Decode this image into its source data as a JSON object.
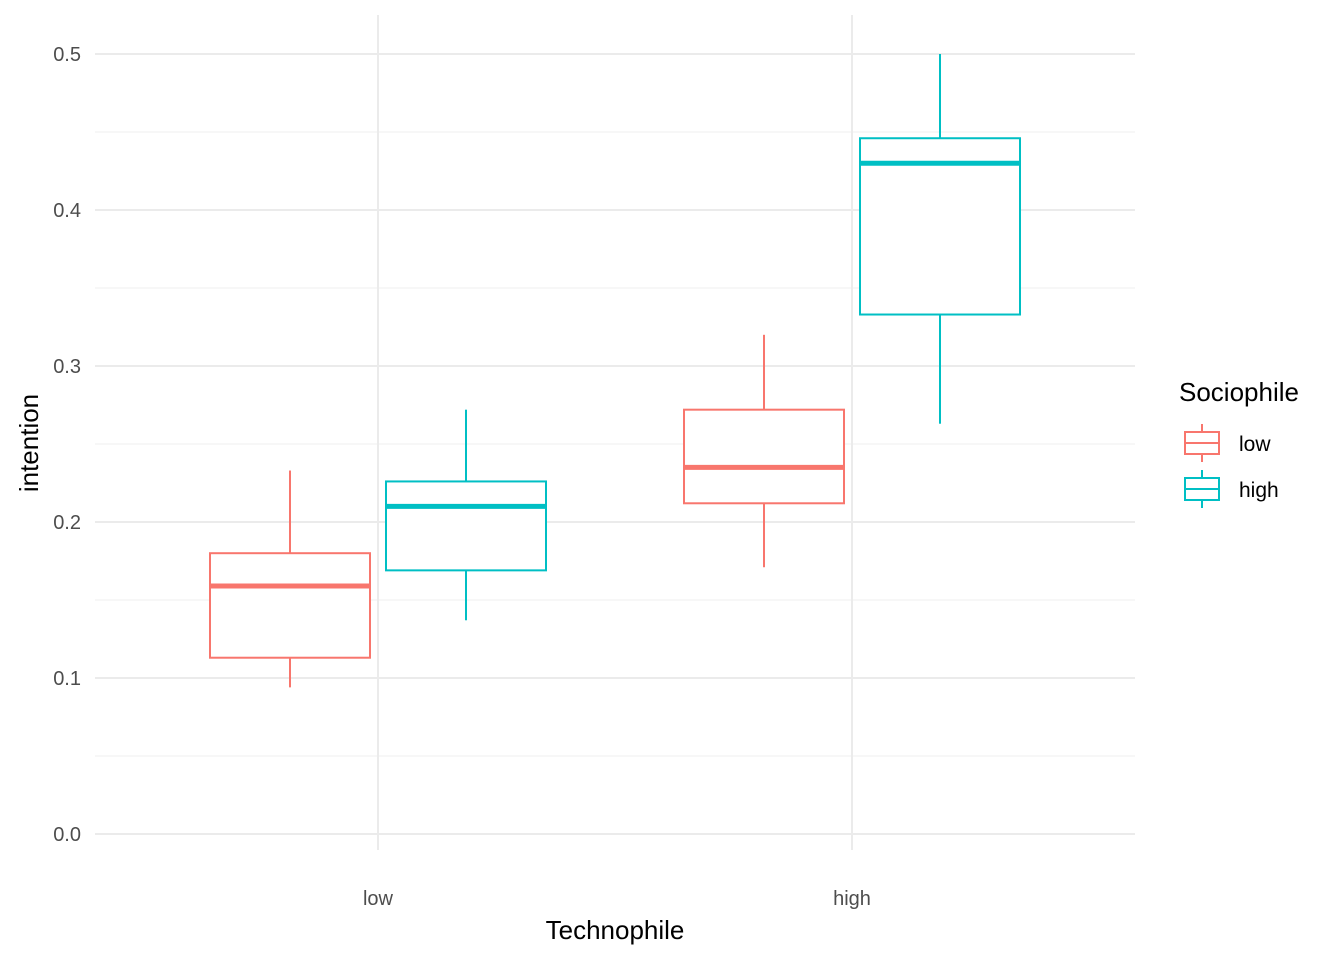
{
  "chart_data": {
    "type": "boxplot",
    "xlabel": "Technophile",
    "ylabel": "intention",
    "categories": [
      "low",
      "high"
    ],
    "ylim": [
      0,
      0.5
    ],
    "yticks": [
      "0.0",
      "0.1",
      "0.2",
      "0.3",
      "0.4",
      "0.5"
    ],
    "grid": true,
    "legend": {
      "title": "Sociophile",
      "position": "right",
      "items": [
        "low",
        "high"
      ]
    },
    "series": [
      {
        "name": "low",
        "color": "#F8766D",
        "boxes": [
          {
            "category": "low",
            "min": 0.094,
            "q1": 0.113,
            "median": 0.159,
            "q3": 0.18,
            "max": 0.233
          },
          {
            "category": "high",
            "min": 0.171,
            "q1": 0.212,
            "median": 0.235,
            "q3": 0.272,
            "max": 0.32
          }
        ]
      },
      {
        "name": "high",
        "color": "#00BFC4",
        "boxes": [
          {
            "category": "low",
            "min": 0.137,
            "q1": 0.169,
            "median": 0.21,
            "q3": 0.226,
            "max": 0.272
          },
          {
            "category": "high",
            "min": 0.263,
            "q1": 0.333,
            "median": 0.43,
            "q3": 0.446,
            "max": 0.5
          }
        ]
      }
    ]
  }
}
